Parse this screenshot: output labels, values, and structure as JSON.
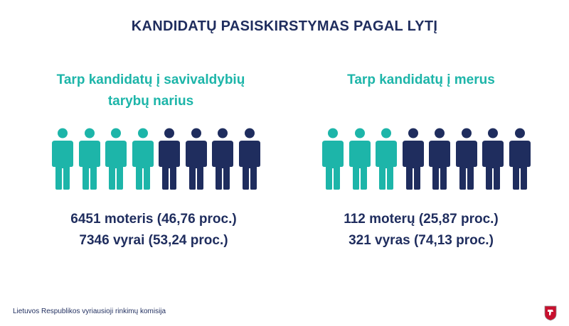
{
  "title": "KANDIDATŲ PASISKIRSTYMAS PAGAL LYTĮ",
  "colors": {
    "female": "#1db5a9",
    "male": "#1f2d5e",
    "title": "#1f2d5e",
    "subtitle": "#1db5a9"
  },
  "left": {
    "subtitle_line1": "Tarp kandidatų į savivaldybių",
    "subtitle_line2": "tarybų narius",
    "figures": {
      "female": 4,
      "male": 4
    },
    "stat_women": "6451 moteris (46,76 proc.)",
    "stat_men": "7346 vyrai (53,24 proc.)"
  },
  "right": {
    "subtitle_line1": "Tarp kandidatų į merus",
    "figures": {
      "female": 3,
      "male": 5
    },
    "stat_women": "112 moterų (25,87 proc.)",
    "stat_men": "321 vyras (74,13 proc.)"
  },
  "footer": "Lietuvos Respublikos vyriausioji rinkimų komisija",
  "emblem_icon": "coat-of-arms-icon"
}
